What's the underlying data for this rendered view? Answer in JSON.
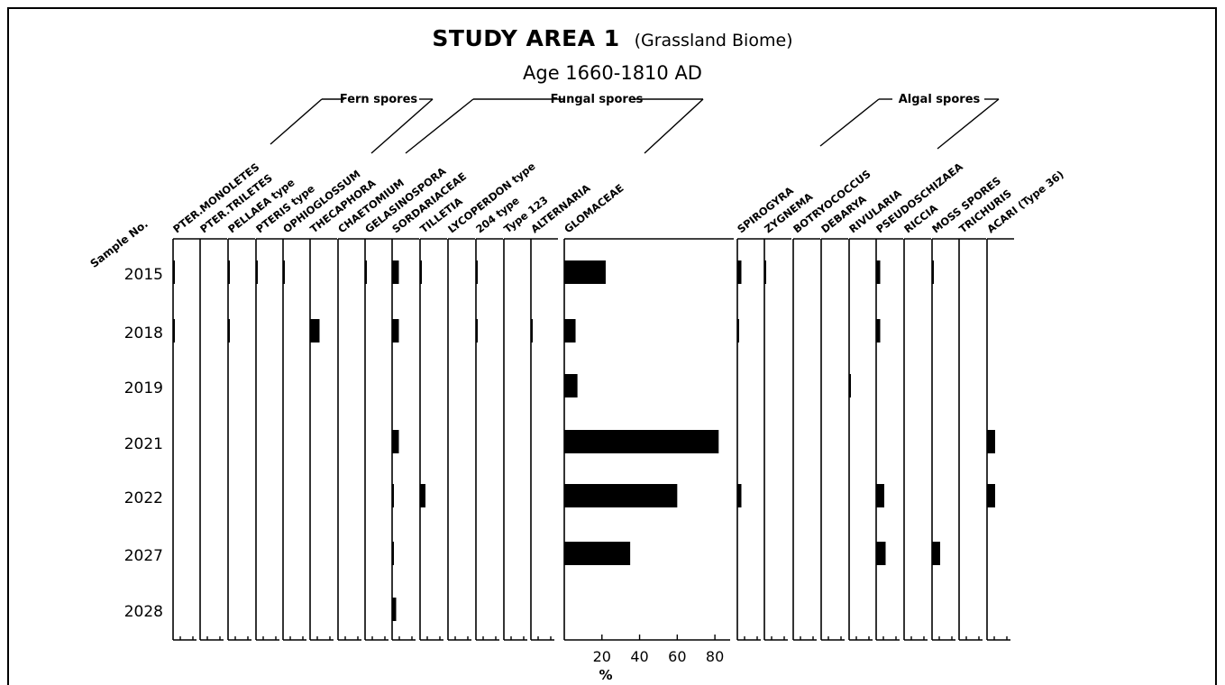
{
  "title": "STUDY AREA 1",
  "title_suffix": "(Grassland Biome)",
  "subtitle": "Age 1660-1810 AD",
  "sample_header": "Sample No.",
  "x_unit_label": "%",
  "chart_data": {
    "type": "bar",
    "orientation": "horizontal",
    "title": "STUDY AREA 1 (Grassland Biome)",
    "subtitle": "Age 1660-1810 AD",
    "row_header": "Sample No.",
    "samples": [
      "2015",
      "2018",
      "2019",
      "2021",
      "2022",
      "2027",
      "2028"
    ],
    "groups": [
      {
        "name": "Fern spores"
      },
      {
        "name": "Fungal spores"
      },
      {
        "name": "Algal spores"
      }
    ],
    "x_ticks": [
      "20",
      "40",
      "60",
      "80"
    ],
    "xlabel": "%",
    "xlim": [
      0,
      90
    ],
    "series": [
      {
        "name": "PTER.MONOLETES",
        "values": [
          0.5,
          0.4,
          0,
          0,
          0,
          0,
          0
        ]
      },
      {
        "name": "PTER.TRILETES",
        "values": [
          0,
          0,
          0,
          0,
          0,
          0,
          0
        ]
      },
      {
        "name": "PELLAEA type",
        "values": [
          0.4,
          0.5,
          0,
          0,
          0,
          0,
          0
        ]
      },
      {
        "name": "PTERIS type",
        "values": [
          1,
          0,
          0,
          0,
          0,
          0,
          0
        ]
      },
      {
        "name": "OPHIOGLOSSUM",
        "values": [
          0.4,
          0,
          0,
          0,
          0,
          0,
          0
        ]
      },
      {
        "name": "THECAPHORA",
        "values": [
          0,
          7,
          0,
          0,
          0,
          0,
          0
        ]
      },
      {
        "name": "CHAETOMIUM",
        "values": [
          0,
          0,
          0,
          0,
          0,
          0,
          0
        ]
      },
      {
        "name": "GELASINOSPORA",
        "values": [
          0.5,
          0,
          0,
          0,
          0,
          0,
          0
        ]
      },
      {
        "name": "SORDARIACEAE",
        "values": [
          5,
          5,
          0,
          5,
          1,
          1,
          3
        ]
      },
      {
        "name": "TILLETIA",
        "values": [
          1,
          0,
          0,
          0,
          4,
          0,
          0
        ]
      },
      {
        "name": "LYCOPERDON type",
        "values": [
          0,
          0,
          0,
          0,
          0,
          0,
          0
        ]
      },
      {
        "name": "204 type",
        "values": [
          0.4,
          0.4,
          0,
          0,
          0,
          0,
          0
        ]
      },
      {
        "name": "Type 123",
        "values": [
          0,
          0,
          0,
          0,
          0,
          0,
          0
        ]
      },
      {
        "name": "ALTERNARIA",
        "values": [
          0,
          1,
          0,
          0,
          0,
          0,
          0
        ]
      },
      {
        "name": "GLOMACEAE",
        "values": [
          22,
          6,
          7,
          82,
          60,
          35,
          0
        ]
      },
      {
        "name": "SPIROGYRA",
        "values": [
          3,
          1,
          0,
          0,
          3,
          0,
          0
        ]
      },
      {
        "name": "ZYGNEMA",
        "values": [
          1,
          0,
          0,
          0,
          0,
          0,
          0
        ]
      },
      {
        "name": "BOTRYOCOCCUS",
        "values": [
          0,
          0,
          0,
          0,
          0,
          0,
          0
        ]
      },
      {
        "name": "DEBARYA",
        "values": [
          0,
          0,
          0,
          0,
          0,
          0,
          0
        ]
      },
      {
        "name": "RIVULARIA",
        "values": [
          0,
          0,
          1,
          0,
          0,
          0,
          0
        ]
      },
      {
        "name": "PSEUDOSCHIZAEA",
        "values": [
          3,
          3,
          0,
          0,
          6,
          7,
          0
        ]
      },
      {
        "name": "RICCIA",
        "values": [
          0,
          0,
          0,
          0,
          0,
          0,
          0
        ]
      },
      {
        "name": "MOSS SPORES",
        "values": [
          1,
          0,
          0,
          0,
          0,
          6,
          0
        ]
      },
      {
        "name": "TRICHURIS",
        "values": [
          0,
          0,
          0,
          0,
          0,
          0,
          0
        ]
      },
      {
        "name": "ACARI (Type 36)",
        "values": [
          0,
          0,
          0,
          6,
          6,
          0,
          0
        ]
      }
    ]
  }
}
